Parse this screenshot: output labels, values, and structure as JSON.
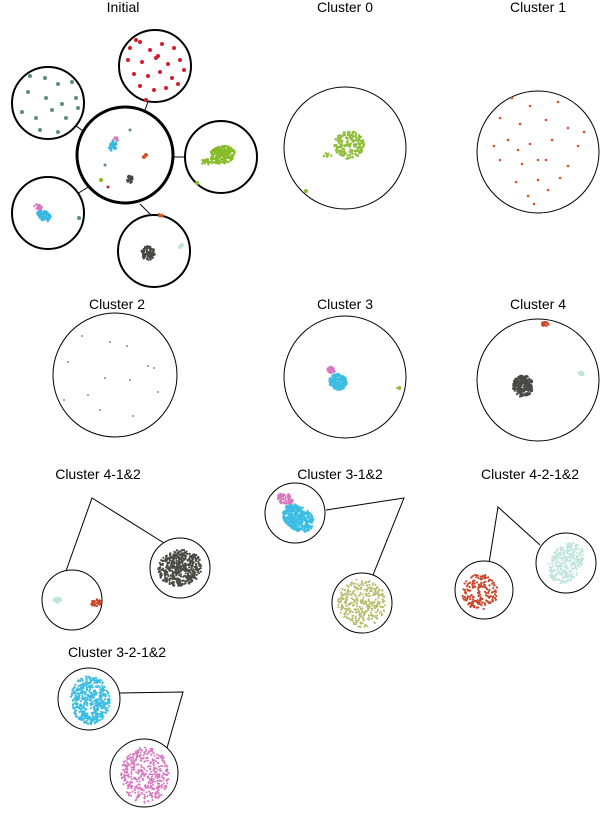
{
  "colors": {
    "teal": "#5f8f7c",
    "red": "#d21e2e",
    "green": "#86bd27",
    "orange": "#d2552b",
    "gray": "#8a8a8a",
    "blue": "#35b8e2",
    "pink": "#d678c0",
    "dark": "#4a4a45",
    "rust": "#c8472a",
    "mint": "#bfe4dc",
    "olive": "#b7bc6a",
    "lightgreen": "#8fbf3a",
    "lightblue": "#3bbde3"
  },
  "panels": {
    "initial": {
      "title": "Initial"
    },
    "cluster0": {
      "title": "Cluster 0"
    },
    "cluster1": {
      "title": "Cluster 1"
    },
    "cluster2": {
      "title": "Cluster 2"
    },
    "cluster3": {
      "title": "Cluster 3"
    },
    "cluster4": {
      "title": "Cluster 4"
    },
    "cluster4_1_2": {
      "title": "Cluster 4-1&2"
    },
    "cluster3_1_2": {
      "title": "Cluster 3-1&2"
    },
    "cluster4_2_1_2": {
      "title": "Cluster 4-2-1&2"
    },
    "cluster3_2_1_2": {
      "title": "Cluster 3-2-1&2"
    }
  }
}
